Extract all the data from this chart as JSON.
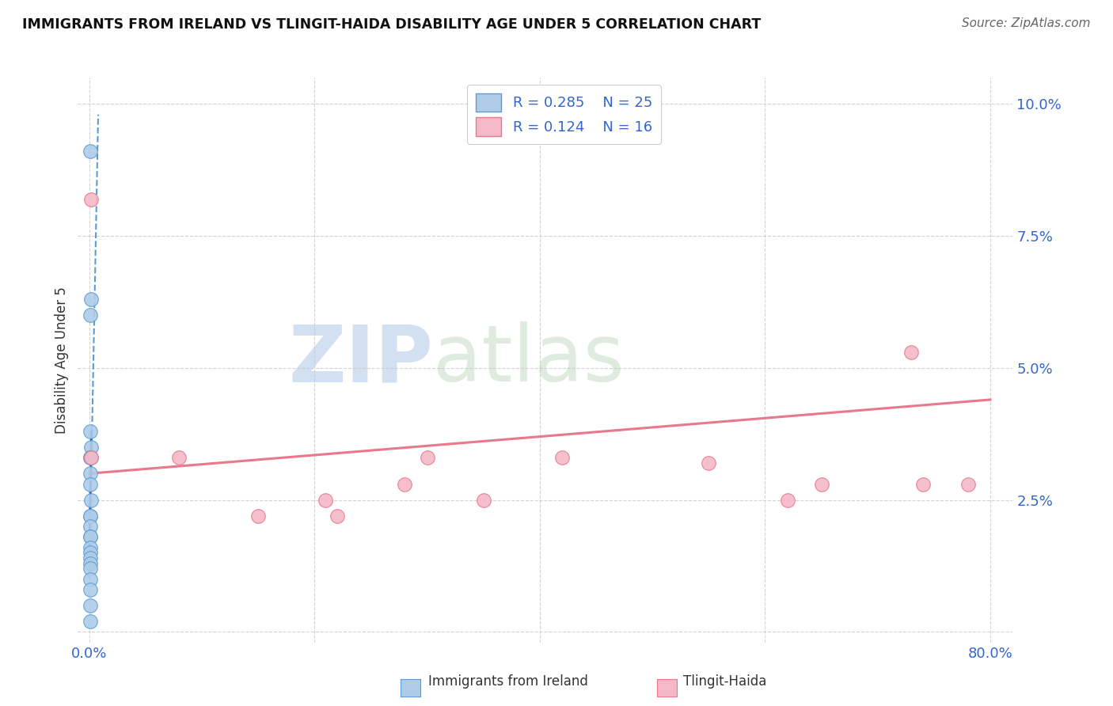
{
  "title": "IMMIGRANTS FROM IRELAND VS TLINGIT-HAIDA DISABILITY AGE UNDER 5 CORRELATION CHART",
  "source": "Source: ZipAtlas.com",
  "ylabel": "Disability Age Under 5",
  "watermark_zip": "ZIP",
  "watermark_atlas": "atlas",
  "legend_ireland_r": "R = 0.285",
  "legend_ireland_n": "N = 25",
  "legend_tlingit_r": "R = 0.124",
  "legend_tlingit_n": "N = 16",
  "ireland_color": "#aecce8",
  "ireland_edge_color": "#5b9bd5",
  "tlingit_color": "#f4b8c8",
  "tlingit_edge_color": "#e8788a",
  "ireland_line_color": "#5b9bd5",
  "tlingit_line_color": "#e8788a",
  "grid_color": "#c8c8c8",
  "xlim": [
    -0.01,
    0.82
  ],
  "ylim": [
    -0.002,
    0.105
  ],
  "xticks": [
    0.0,
    0.2,
    0.4,
    0.6,
    0.8
  ],
  "xtick_labels": [
    "0.0%",
    "",
    "",
    "",
    "80.0%"
  ],
  "yticks": [
    0.0,
    0.025,
    0.05,
    0.075,
    0.1
  ],
  "ytick_labels": [
    "",
    "2.5%",
    "5.0%",
    "7.5%",
    "10.0%"
  ],
  "ireland_x": [
    0.001,
    0.002,
    0.001,
    0.001,
    0.002,
    0.001,
    0.002,
    0.001,
    0.001,
    0.001,
    0.002,
    0.001,
    0.001,
    0.001,
    0.001,
    0.001,
    0.001,
    0.001,
    0.001,
    0.001,
    0.001,
    0.001,
    0.001,
    0.001,
    0.001
  ],
  "ireland_y": [
    0.091,
    0.063,
    0.06,
    0.038,
    0.035,
    0.033,
    0.033,
    0.033,
    0.03,
    0.028,
    0.025,
    0.022,
    0.022,
    0.02,
    0.018,
    0.018,
    0.016,
    0.015,
    0.014,
    0.013,
    0.012,
    0.01,
    0.008,
    0.005,
    0.002
  ],
  "tlingit_x": [
    0.002,
    0.002,
    0.08,
    0.15,
    0.21,
    0.22,
    0.28,
    0.3,
    0.35,
    0.42,
    0.55,
    0.62,
    0.65,
    0.73,
    0.74,
    0.78
  ],
  "tlingit_y": [
    0.082,
    0.033,
    0.033,
    0.022,
    0.025,
    0.022,
    0.028,
    0.033,
    0.025,
    0.033,
    0.032,
    0.025,
    0.028,
    0.053,
    0.028,
    0.028
  ],
  "ireland_trend_x": [
    0.0,
    0.008
  ],
  "ireland_trend_y": [
    0.01,
    0.098
  ],
  "tlingit_trend_x": [
    0.0,
    0.8
  ],
  "tlingit_trend_y": [
    0.03,
    0.044
  ],
  "label_color": "#3366cc",
  "title_color": "#111111",
  "source_color": "#666666"
}
